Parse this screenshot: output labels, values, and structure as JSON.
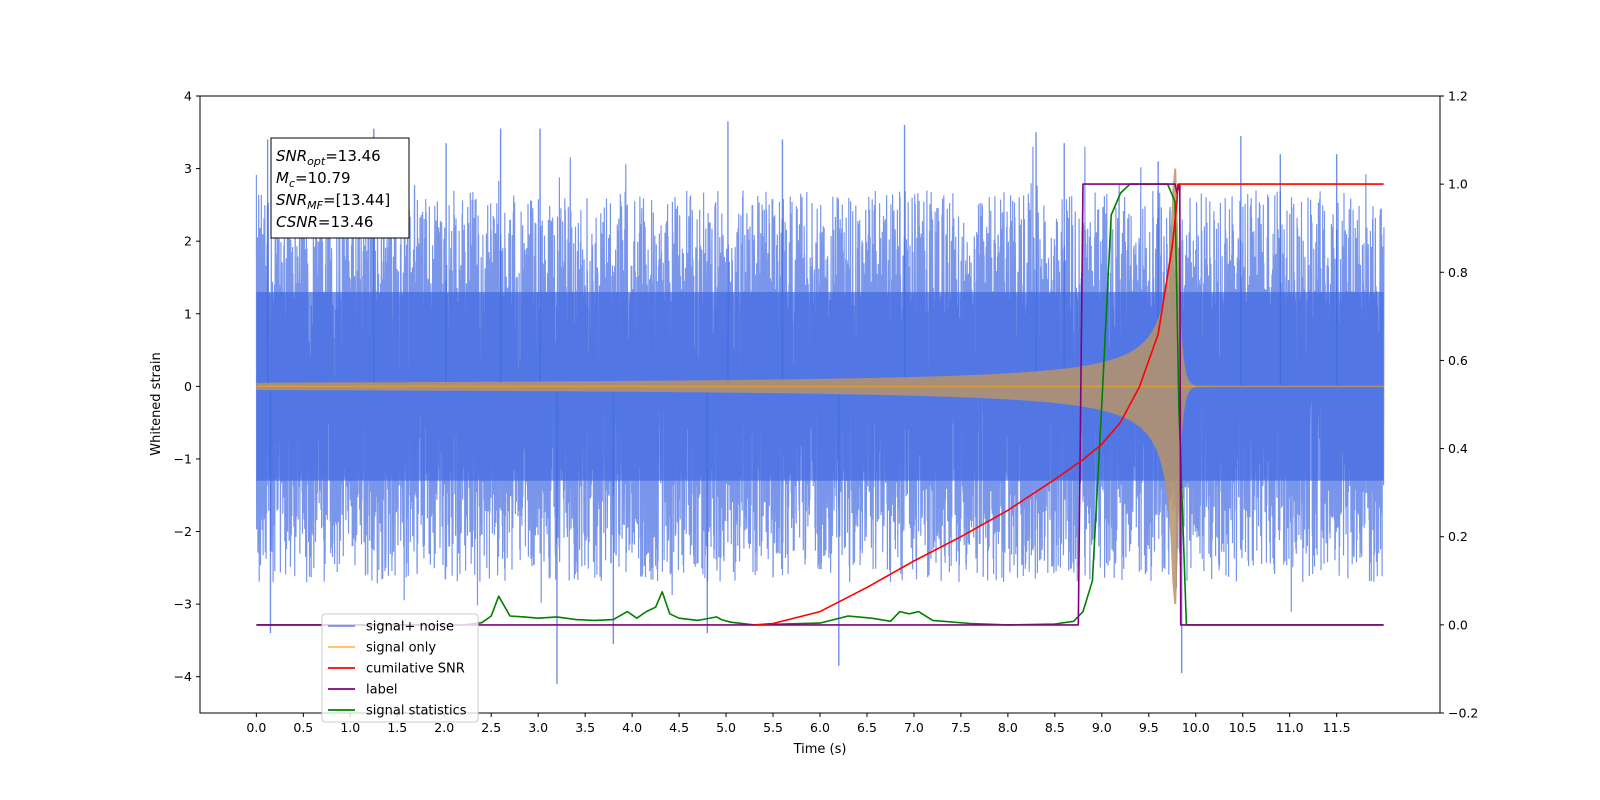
{
  "chart_data": {
    "type": "line",
    "xlabel": "Time (s)",
    "ylabel": "Whitened strain",
    "xlim": [
      -0.6,
      12.6
    ],
    "ylim": [
      -4.5,
      4.0
    ],
    "y2lim": [
      -0.2,
      1.2
    ],
    "x_ticks": [
      "0.0",
      "0.5",
      "1.0",
      "1.5",
      "2.0",
      "2.5",
      "3.0",
      "3.5",
      "4.0",
      "4.5",
      "5.0",
      "5.5",
      "6.0",
      "6.5",
      "7.0",
      "7.5",
      "8.0",
      "8.5",
      "9.0",
      "9.5",
      "10.0",
      "10.5",
      "11.0",
      "11.5"
    ],
    "y_ticks": [
      "4",
      "3",
      "2",
      "1",
      "0",
      "−1",
      "−2",
      "−3",
      "−4"
    ],
    "y2_ticks": [
      "1.2",
      "1.0",
      "0.8",
      "0.6",
      "0.4",
      "0.2",
      "0.0",
      "−0.2"
    ],
    "grid": false,
    "legend_position": "lower-left",
    "annotation_box": {
      "lines": [
        {
          "sym": "SNR",
          "sub": "opt",
          "value": "=13.46"
        },
        {
          "sym": "M",
          "sub": "c",
          "value": "=10.79"
        },
        {
          "sym": "SNR",
          "sub": "MF",
          "value": "=[13.44]"
        },
        {
          "sym": "CSNR",
          "sub": "",
          "value": "=13.46"
        }
      ]
    },
    "series": [
      {
        "name": "signal+ noise",
        "axis": "left",
        "color": "#4169e1",
        "style": "noise band, amplitude ~2.5, spikes up to ~3.6 / down to ~-4.1, t = 0.0 to 12.0"
      },
      {
        "name": "signal only",
        "axis": "left",
        "color": "#ffa500",
        "style": "chirp, near zero until ~5.5 s, amplitude growing to ~3 at merger t = 9.8 s, ringdown to 0 by ~10.0 s"
      },
      {
        "name": "cumilative SNR",
        "axis": "right",
        "color": "#ff0000",
        "x": [
          5.3,
          5.5,
          6.0,
          6.5,
          7.0,
          7.5,
          8.0,
          8.5,
          8.8,
          9.0,
          9.2,
          9.4,
          9.6,
          9.75,
          9.8,
          9.81,
          12.0
        ],
        "y": [
          0.0,
          0.003,
          0.03,
          0.085,
          0.145,
          0.2,
          0.26,
          0.33,
          0.375,
          0.41,
          0.46,
          0.54,
          0.66,
          0.86,
          0.96,
          1.0,
          1.0
        ]
      },
      {
        "name": "label",
        "axis": "right",
        "color": "#800080",
        "x": [
          0.0,
          8.75,
          8.8,
          9.78,
          9.8,
          9.83,
          9.84,
          12.0
        ],
        "y": [
          0.0,
          0.0,
          1.0,
          1.0,
          0.98,
          1.0,
          0.0,
          0.0
        ]
      },
      {
        "name": "signal statistics",
        "axis": "right",
        "color": "#008000",
        "x": [
          0.0,
          2.2,
          2.4,
          2.5,
          2.58,
          2.7,
          2.85,
          3.0,
          3.2,
          3.4,
          3.6,
          3.8,
          3.95,
          4.05,
          4.15,
          4.25,
          4.32,
          4.4,
          4.5,
          4.7,
          4.9,
          4.95,
          5.05,
          5.3,
          5.6,
          6.0,
          6.3,
          6.55,
          6.75,
          6.85,
          6.95,
          7.05,
          7.2,
          7.6,
          8.0,
          8.5,
          8.7,
          8.8,
          8.9,
          9.0,
          9.1,
          9.2,
          9.3,
          9.5,
          9.7,
          9.78,
          9.82,
          9.9,
          12.0
        ],
        "y": [
          0.0,
          0.0,
          0.005,
          0.02,
          0.065,
          0.02,
          0.018,
          0.015,
          0.018,
          0.012,
          0.01,
          0.012,
          0.03,
          0.015,
          0.03,
          0.04,
          0.075,
          0.025,
          0.015,
          0.01,
          0.018,
          0.012,
          0.006,
          0.0,
          0.002,
          0.004,
          0.02,
          0.015,
          0.008,
          0.03,
          0.025,
          0.03,
          0.01,
          0.003,
          0.0,
          0.002,
          0.008,
          0.03,
          0.1,
          0.5,
          0.93,
          0.98,
          1.0,
          1.0,
          1.0,
          0.96,
          0.5,
          0.0,
          0.0
        ]
      }
    ]
  }
}
